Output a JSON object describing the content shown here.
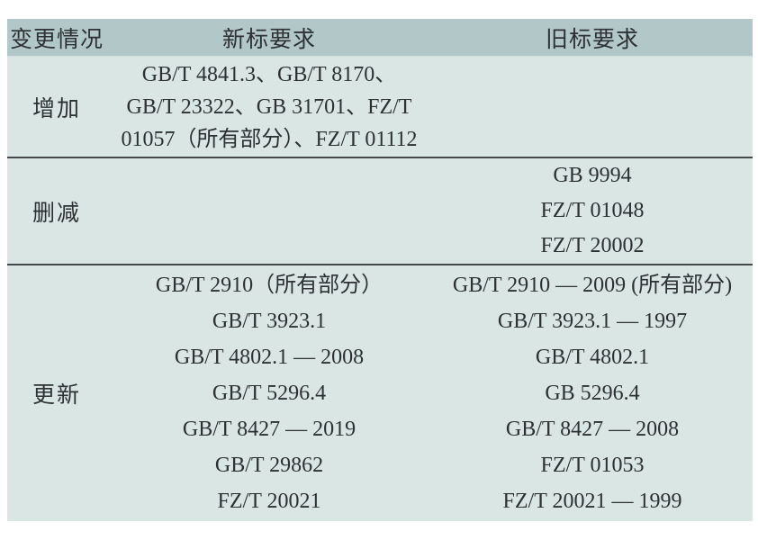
{
  "table": {
    "title_semantics": "标准变更对照表",
    "colors": {
      "header_bg": "#b2c7c7",
      "body_bg": "#d9e6e4",
      "separator": "#45494b",
      "text": "#2d3134"
    },
    "header": {
      "col_change": "变更情况",
      "col_new": "新标要求",
      "col_old": "旧标要求"
    },
    "rows": [
      {
        "label": "增加",
        "new": [
          "GB/T 4841.3、GB/T 8170、",
          "GB/T 23322、GB 31701、FZ/T",
          "01057（所有部分）、FZ/T 01112"
        ],
        "old": []
      },
      {
        "label": "删减",
        "new": [],
        "old": [
          "GB 9994",
          "FZ/T 01048",
          "FZ/T 20002"
        ]
      },
      {
        "label": "更新",
        "new": [
          "GB/T 2910（所有部分）",
          "GB/T 3923.1",
          "GB/T 4802.1 — 2008",
          "GB/T 5296.4",
          "GB/T 8427 — 2019",
          "GB/T 29862",
          "FZ/T 20021"
        ],
        "old": [
          "GB/T 2910 — 2009 (所有部分)",
          "GB/T 3923.1 — 1997",
          "GB/T 4802.1",
          "GB 5296.4",
          "GB/T 8427 — 2008",
          "FZ/T 01053",
          "FZ/T 20021 — 1999"
        ]
      }
    ]
  }
}
